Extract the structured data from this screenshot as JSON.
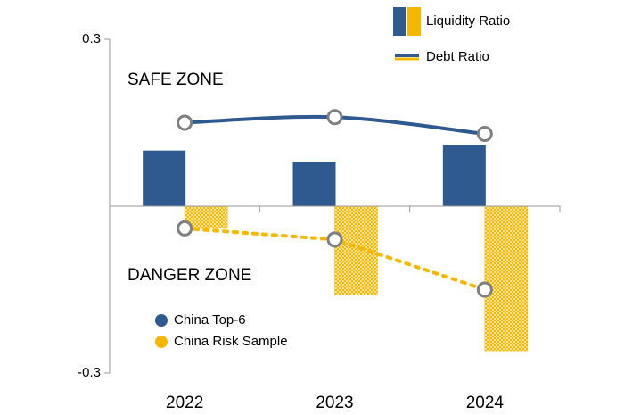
{
  "chart_data": {
    "type": "bar-line",
    "categories": [
      "2022",
      "2023",
      "2024"
    ],
    "bar_label": "Liquidity Ratio",
    "line_label": "Debt Ratio",
    "annotations": [
      "SAFE ZONE",
      "DANGER ZONE"
    ],
    "series": [
      {
        "name": "China Top-6",
        "color": "#2f5a8f",
        "values": [
          0.1,
          0.08,
          0.11
        ],
        "debt_values": [
          0.15,
          0.16,
          0.13
        ]
      },
      {
        "name": "China Risk Sample",
        "color": "#f5b800",
        "values": [
          -0.04,
          -0.16,
          -0.26
        ],
        "debt_values": [
          -0.04,
          -0.06,
          -0.15
        ]
      }
    ],
    "ylim": [
      -0.3,
      0.3
    ],
    "yticks": [
      -0.3,
      0.3
    ]
  }
}
